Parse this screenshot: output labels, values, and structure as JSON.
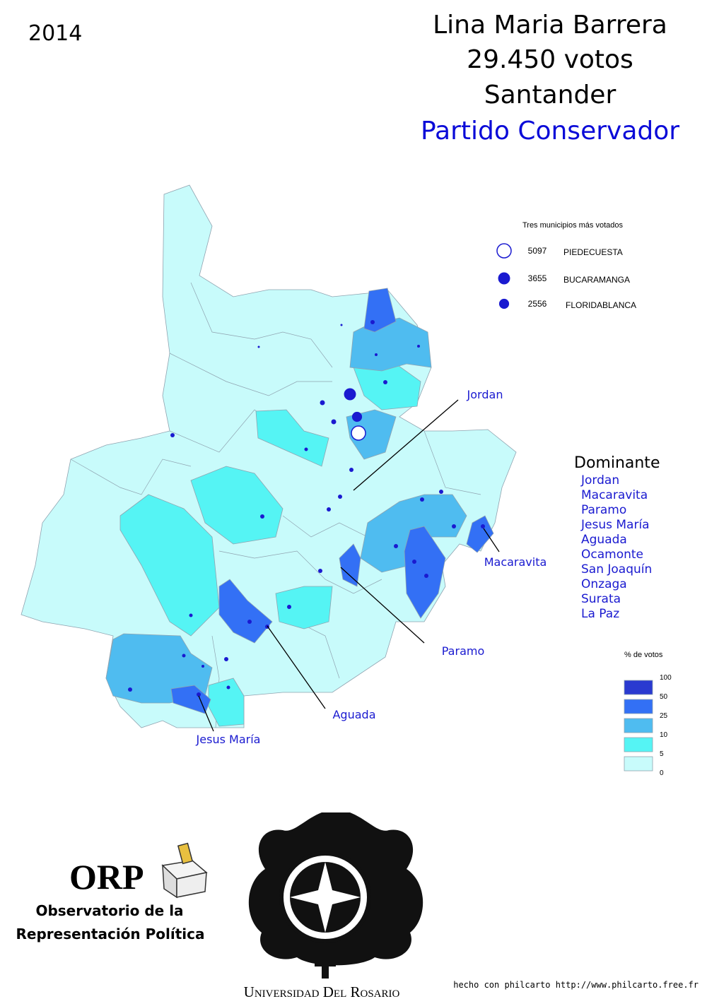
{
  "year": "2014",
  "header": {
    "name": "Lina Maria Barrera",
    "votes": "29.450 votos",
    "department": "Santander",
    "party": "Partido Conservador"
  },
  "top_municipalities": {
    "title": "Tres municipios más votados",
    "items": [
      {
        "votes": 5097,
        "name": "PIEDECUESTA"
      },
      {
        "votes": 3655,
        "name": "BUCARAMANGA"
      },
      {
        "votes": 2556,
        "name": "FLORIDABLANCA"
      }
    ]
  },
  "dominant": {
    "title": "Dominante",
    "items": [
      "Jordan",
      "Macaravita",
      "Paramo",
      "Jesus María",
      "Aguada",
      "Ocamonte",
      "San Joaquín",
      "Onzaga",
      "Surata",
      "La Paz"
    ]
  },
  "map_labels": [
    "Jordan",
    "Macaravita",
    "Paramo",
    "Aguada",
    "Jesus María"
  ],
  "vote_share_legend": {
    "title": "% de votos",
    "breaks": [
      100,
      50,
      25,
      10,
      5,
      0
    ],
    "colors": [
      "#2a3ad0",
      "#3370f5",
      "#4fbcf0",
      "#55f4f4",
      "#c8fbfb"
    ]
  },
  "logos": {
    "orp": "ORP",
    "orp_line1": "Observatorio de la",
    "orp_line2": "Representación Política",
    "university": "Universidad Del Rosario"
  },
  "credit": "hecho con philcarto http://www.philcarto.free.fr"
}
